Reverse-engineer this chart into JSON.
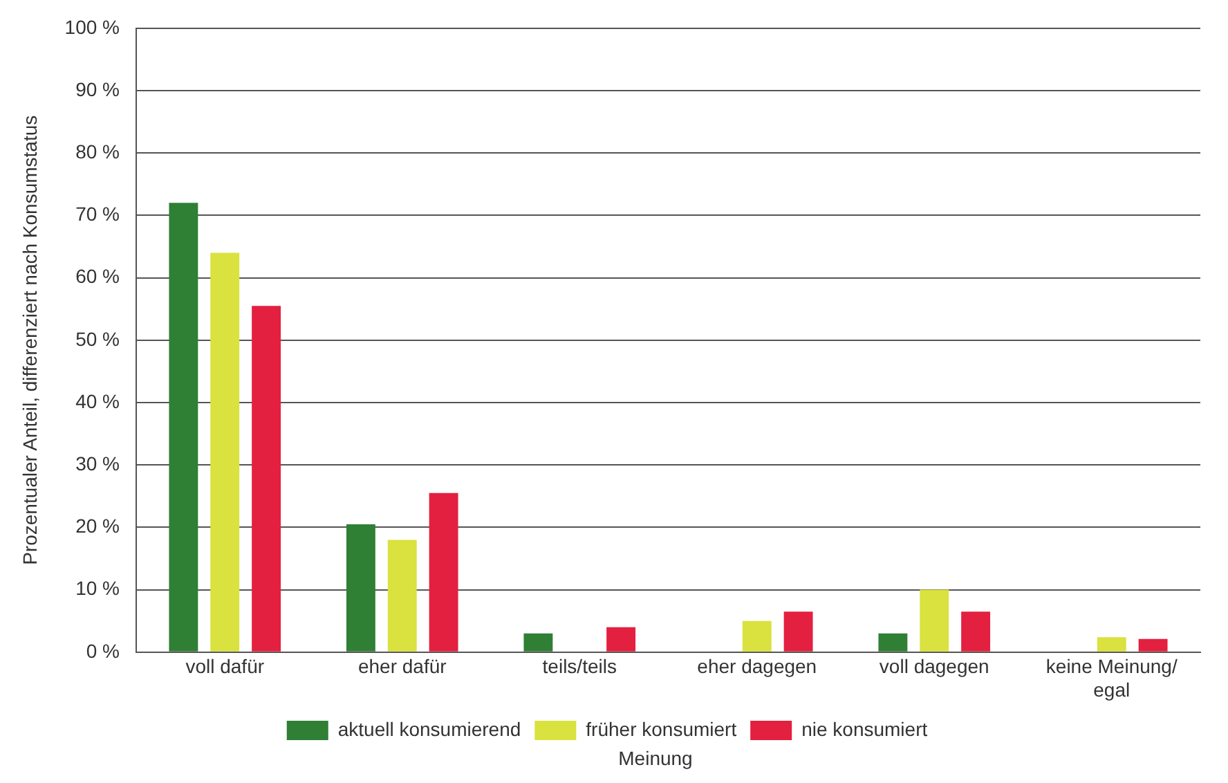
{
  "chart_data": {
    "type": "bar",
    "xlabel": "Meinung",
    "ylabel": "Prozentualer Anteil, differenziert nach Konsumstatus",
    "categories": [
      "voll dafür",
      "eher dafür",
      "teils/teils",
      "eher dagegen",
      "voll dagegen",
      "keine Meinung/\negal"
    ],
    "series": [
      {
        "name": "aktuell konsumierend",
        "color": "#2f7f34",
        "values": [
          72,
          20.5,
          3,
          0,
          3,
          0
        ]
      },
      {
        "name": "früher konsumiert",
        "color": "#d9e23e",
        "values": [
          64,
          18,
          0,
          5,
          10,
          2.4
        ]
      },
      {
        "name": "nie konsumiert",
        "color": "#e3203f",
        "values": [
          55.5,
          25.5,
          4,
          6.5,
          6.5,
          2.1
        ]
      }
    ],
    "ylim": [
      0,
      100
    ],
    "yticks": [
      {
        "value": 0,
        "label": "0 %"
      },
      {
        "value": 10,
        "label": "10 %"
      },
      {
        "value": 20,
        "label": "20 %"
      },
      {
        "value": 30,
        "label": "30 %"
      },
      {
        "value": 40,
        "label": "40 %"
      },
      {
        "value": 50,
        "label": "50 %"
      },
      {
        "value": 60,
        "label": "60 %"
      },
      {
        "value": 70,
        "label": "70 %"
      },
      {
        "value": 80,
        "label": "80 %"
      },
      {
        "value": 90,
        "label": "90 %"
      },
      {
        "value": 100,
        "label": "100 %"
      }
    ],
    "grid": "y",
    "legend": "bottom"
  }
}
